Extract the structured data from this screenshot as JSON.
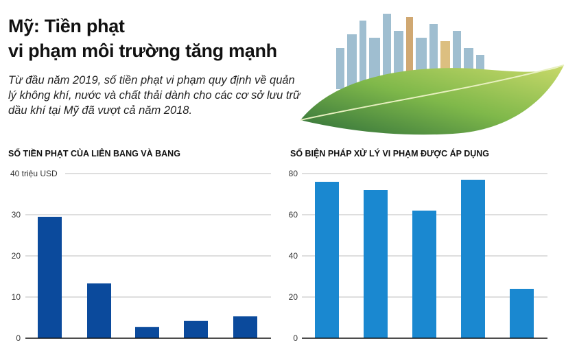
{
  "header": {
    "title_line1": "Mỹ: Tiền phạt",
    "title_line2": "vi phạm môi trường tăng mạnh",
    "subtitle": "Từ đầu năm 2019, số tiền phạt vi phạm quy định về quản lý không khí, nước và chất thải dành cho các cơ sở lưu trữ dầu khí tại Mỹ đã vượt cả năm 2018."
  },
  "illustration": "leaf-city-icon",
  "chart_data": [
    {
      "type": "bar",
      "title": "SỐ TIỀN PHẠT CỦA LIÊN BANG VÀ BANG",
      "ylabel": "triệu USD",
      "ylim": [
        0,
        40
      ],
      "yticks": [
        0,
        10,
        20,
        30,
        40
      ],
      "ytick_labels": [
        "0",
        "10",
        "20",
        "30",
        "40 triệu USD"
      ],
      "values": [
        29.5,
        13.3,
        2.7,
        4.2,
        5.3
      ],
      "color": "#0b4a9c",
      "grid": true
    },
    {
      "type": "bar",
      "title": "SỐ BIỆN PHÁP XỬ LÝ VI PHẠM ĐƯỢC ÁP DỤNG",
      "ylim": [
        0,
        80
      ],
      "yticks": [
        0,
        20,
        40,
        60,
        80
      ],
      "ytick_labels": [
        "0",
        "20",
        "40",
        "60",
        "80"
      ],
      "values": [
        76,
        72,
        62,
        77,
        24
      ],
      "color": "#1a88d0",
      "grid": true
    }
  ]
}
